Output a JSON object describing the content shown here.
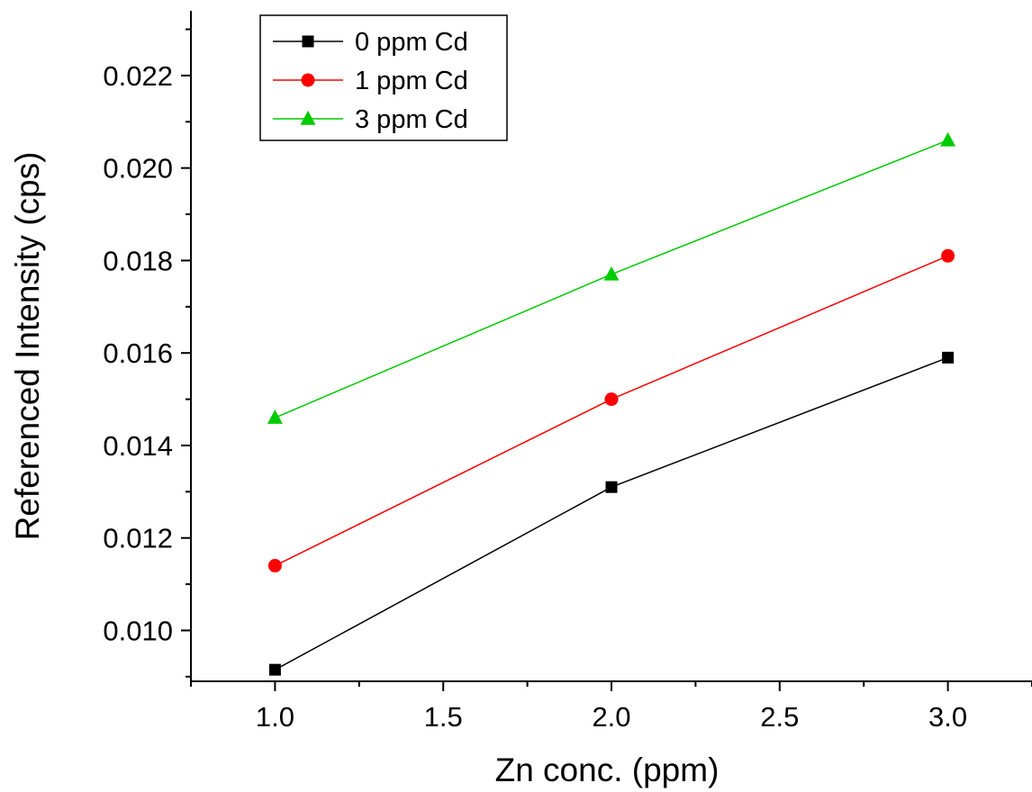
{
  "chart_data": {
    "type": "line",
    "xlabel": "Zn conc. (ppm)",
    "ylabel": "Referenced Intensity (cps)",
    "xlim": [
      0.75,
      3.25
    ],
    "ylim": [
      0.0089,
      0.0234
    ],
    "xticks": [
      1.0,
      1.5,
      2.0,
      2.5,
      3.0
    ],
    "xtick_labels": [
      "1.0",
      "1.5",
      "2.0",
      "2.5",
      "3.0"
    ],
    "yticks": [
      0.01,
      0.012,
      0.014,
      0.016,
      0.018,
      0.02,
      0.022
    ],
    "ytick_labels": [
      "0.010",
      "0.012",
      "0.014",
      "0.016",
      "0.018",
      "0.020",
      "0.022"
    ],
    "grid": false,
    "legend": "top-left",
    "x": [
      1.0,
      2.0,
      3.0
    ],
    "series": [
      {
        "name": "0 ppm Cd",
        "values": [
          0.00915,
          0.0131,
          0.0159
        ],
        "color": "#000000",
        "marker": "square"
      },
      {
        "name": "1 ppm Cd",
        "values": [
          0.0114,
          0.015,
          0.0181
        ],
        "color": "#ff0000",
        "marker": "circle"
      },
      {
        "name": "3 ppm Cd",
        "values": [
          0.0146,
          0.0177,
          0.0206
        ],
        "color": "#00cc00",
        "marker": "triangle"
      }
    ]
  }
}
